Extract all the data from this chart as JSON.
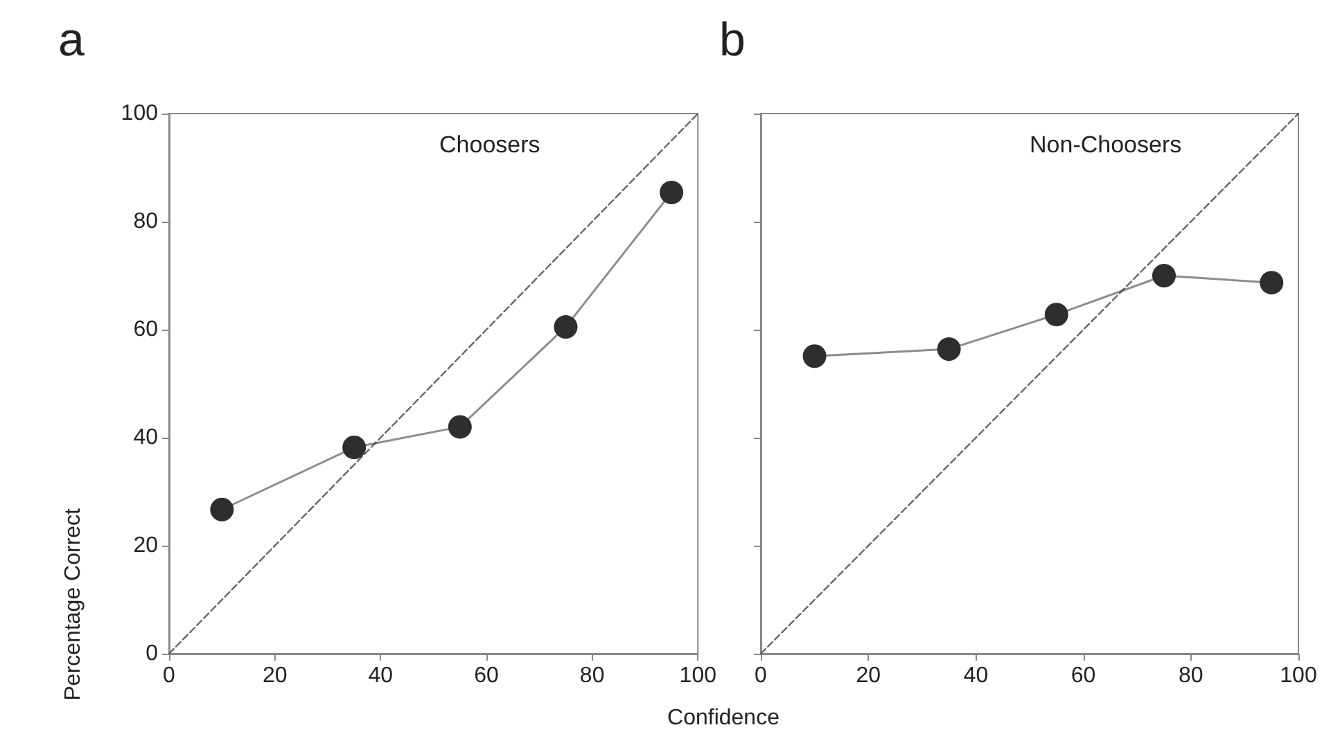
{
  "chart_data": [
    {
      "type": "line",
      "title": "Choosers",
      "annotations": [
        "a"
      ],
      "xlabel": "Confidence",
      "ylabel": "Percentage Correct",
      "xlim": [
        0,
        100
      ],
      "xticks": [
        0,
        20,
        40,
        60,
        80,
        100
      ],
      "ylim": [
        0,
        100
      ],
      "yticks": [
        0,
        20,
        40,
        60,
        80,
        100
      ],
      "series": [
        {
          "x": [
            0,
            100
          ],
          "values": [
            0,
            100
          ],
          "color": "#555555",
          "line_style": "dashed",
          "marker": "none"
        },
        {
          "x": [
            10,
            35,
            55,
            75,
            95
          ],
          "values": [
            26.7,
            38.2,
            42,
            60.5,
            85.4
          ],
          "color": "#2e2e2e",
          "line_style": "solid",
          "marker": "circle"
        }
      ]
    },
    {
      "type": "line",
      "title": "Non-Choosers",
      "annotations": [
        "b"
      ],
      "xlim": [
        0,
        100
      ],
      "xticks": [
        0,
        20,
        40,
        60,
        80,
        100
      ],
      "ylim": [
        0,
        100
      ],
      "yticks": [
        0,
        20,
        40,
        60,
        80,
        100
      ],
      "tick_labels": "x",
      "series": [
        {
          "x": [
            0,
            100
          ],
          "values": [
            0,
            100
          ],
          "color": "#555555",
          "line_style": "dashed",
          "marker": "none"
        },
        {
          "x": [
            10,
            35,
            55,
            75,
            95
          ],
          "values": [
            55.1,
            56.4,
            62.8,
            70,
            68.7
          ],
          "color": "#2e2e2e",
          "line_style": "solid",
          "marker": "circle"
        }
      ]
    }
  ]
}
